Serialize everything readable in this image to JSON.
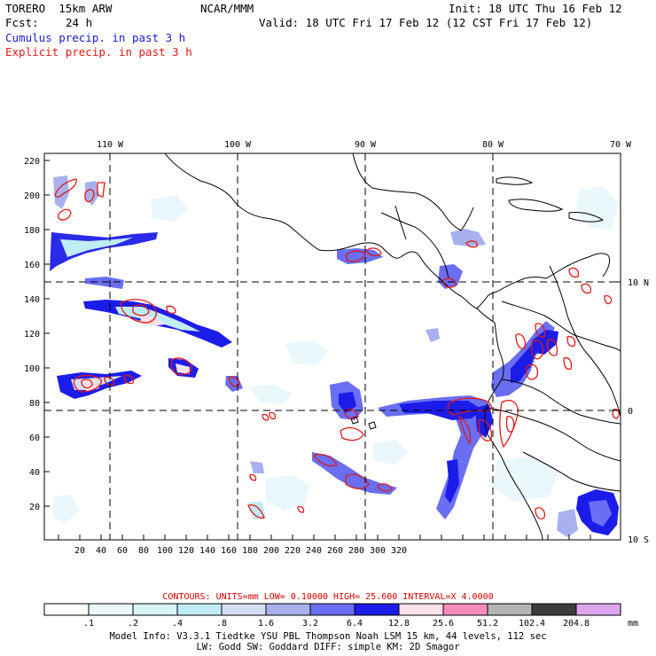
{
  "header": {
    "model": "TORERO  15km ARW",
    "center": "NCAR/MMM",
    "init": "Init: 18 UTC Thu 16 Feb 12",
    "fcst_label": "Fcst:",
    "fcst_value": "24 h",
    "valid": "Valid: 18 UTC Fri 17 Feb 12 (12 CST Fri 17 Feb 12)",
    "field1": "Cumulus precip. in past 3 h",
    "field2": "Explicit precip. in past 3 h"
  },
  "map": {
    "top_labels": [
      "110 W",
      "100 W",
      "90 W",
      "80 W",
      "70 W"
    ],
    "right_labels": [
      "10 N",
      "0",
      "10 S"
    ],
    "y_ticks": [
      "220",
      "200",
      "180",
      "160",
      "140",
      "120",
      "100",
      "80",
      "60",
      "40",
      "20"
    ],
    "x_ticks": [
      "20",
      "40",
      "60",
      "80",
      "100",
      "120",
      "140",
      "160",
      "180",
      "200",
      "220",
      "240",
      "260",
      "280",
      "300",
      "320"
    ]
  },
  "contour_info": {
    "text": "CONTOURS:  UNITS=mm  LOW= 0.10000      HIGH=  25.600      INTERVAL=X  4.0000"
  },
  "colorbar": {
    "labels": [
      ".1",
      ".2",
      ".4",
      ".8",
      "1.6",
      "3.2",
      "6.4",
      "12.8",
      "25.6",
      "51.2",
      "102.4",
      "204.8"
    ],
    "unit": "mm",
    "colors": [
      "#ffffff",
      "#eaf8fc",
      "#d8f4f8",
      "#c0ecf6",
      "#d6dcf4",
      "#a8b0ee",
      "#6a6ef2",
      "#1c1cea",
      "#fde0ea",
      "#f68cbc",
      "#b4b4b4",
      "#3c3c3c",
      "#dba6ee"
    ]
  },
  "footer": {
    "line1": "Model Info: V3.3.1   Tiedtke YSU PBL  Thompson    Noah LSM  15 km,   44 levels,  112 sec",
    "line2": "LW: Godd SW: Goddard DIFF: simple KM: 2D Smagor"
  }
}
